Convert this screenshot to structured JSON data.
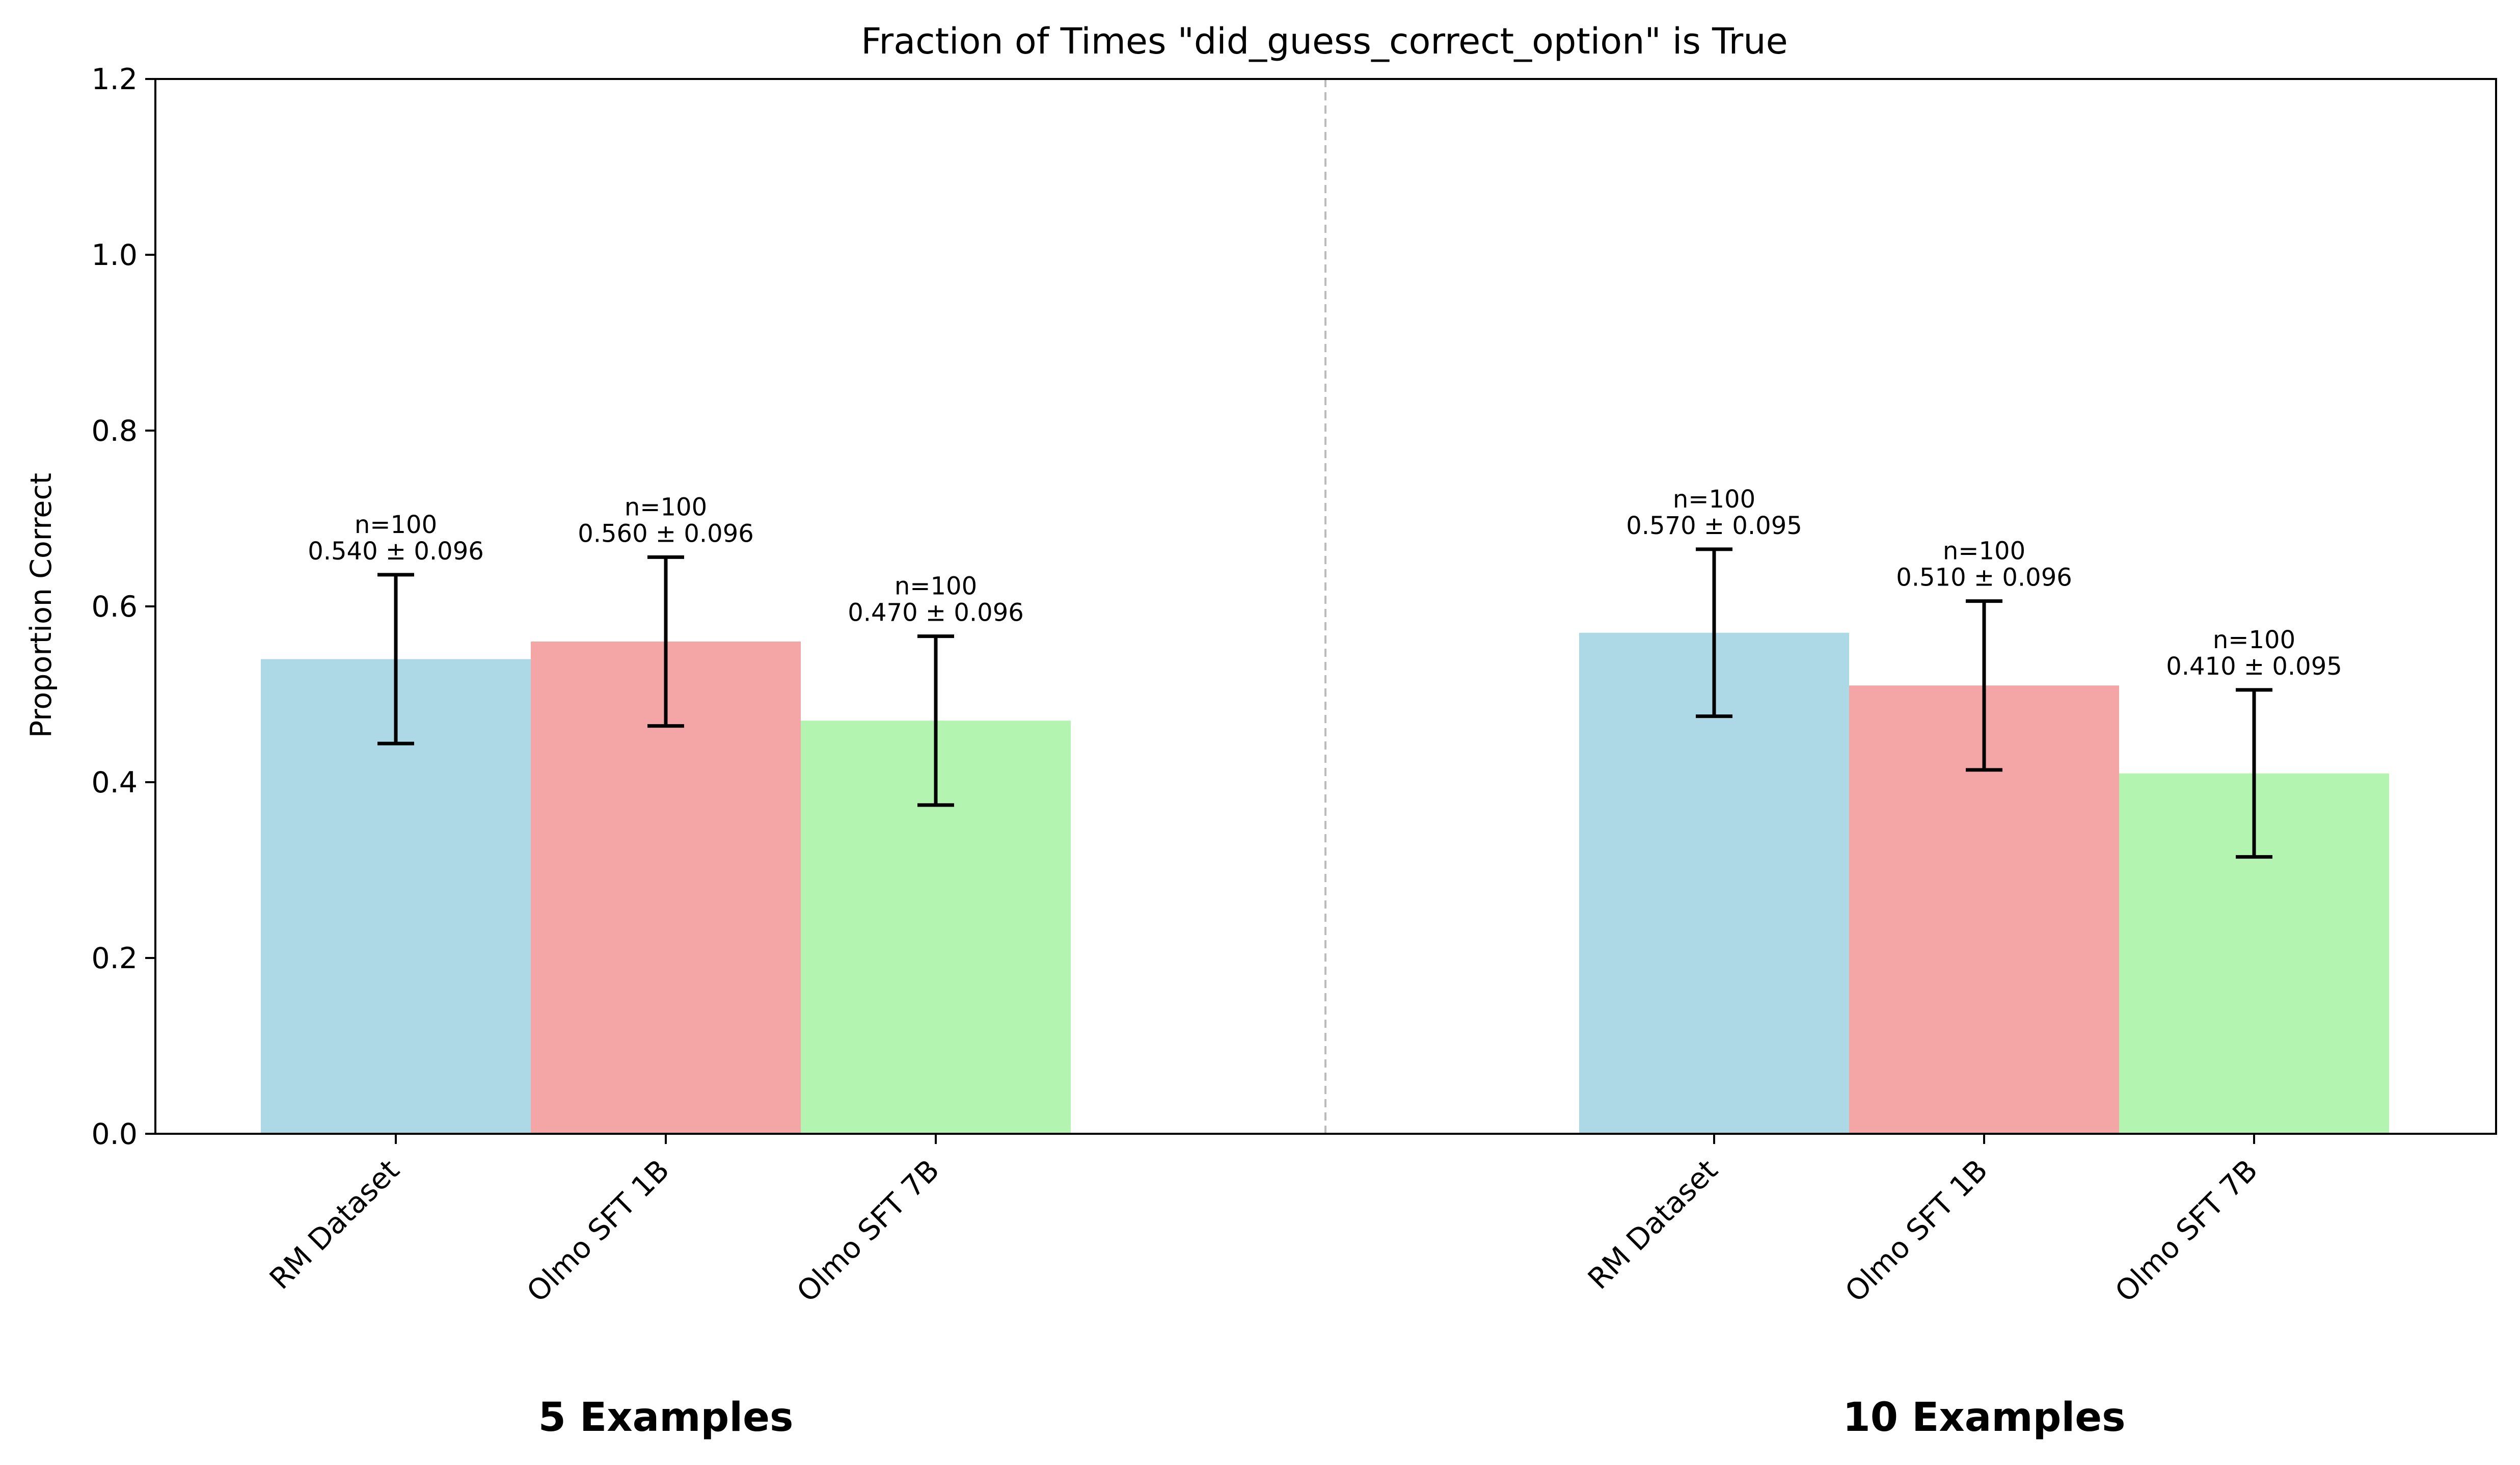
{
  "chart_data": {
    "type": "bar",
    "title": "Fraction of Times \"did_guess_correct_option\" is True",
    "ylabel": "Proportion Correct",
    "xlabel": "",
    "ylim": [
      0,
      1.2
    ],
    "yticks": [
      "0.0",
      "0.2",
      "0.4",
      "0.6",
      "0.8",
      "1.0",
      "1.2"
    ],
    "ytick_values": [
      0,
      0.2,
      0.4,
      0.6,
      0.8,
      1.0,
      1.2
    ],
    "grid": false,
    "legend": "none",
    "groups": [
      {
        "label": "5 Examples",
        "bars": [
          {
            "category": "RM Dataset",
            "value": 0.54,
            "error": 0.096,
            "n_label": "n=100",
            "value_label": "0.540 ± 0.096",
            "color": "#add8e6"
          },
          {
            "category": "Olmo SFT 1B",
            "value": 0.56,
            "error": 0.096,
            "n_label": "n=100",
            "value_label": "0.560 ± 0.096",
            "color": "#f4a6a6"
          },
          {
            "category": "Olmo SFT 7B",
            "value": 0.47,
            "error": 0.096,
            "n_label": "n=100",
            "value_label": "0.470 ± 0.096",
            "color": "#b2f4b0"
          }
        ]
      },
      {
        "label": "10 Examples",
        "bars": [
          {
            "category": "RM Dataset",
            "value": 0.57,
            "error": 0.095,
            "n_label": "n=100",
            "value_label": "0.570 ± 0.095",
            "color": "#add8e6"
          },
          {
            "category": "Olmo SFT 1B",
            "value": 0.51,
            "error": 0.096,
            "n_label": "n=100",
            "value_label": "0.510 ± 0.096",
            "color": "#f4a6a6"
          },
          {
            "category": "Olmo SFT 7B",
            "value": 0.41,
            "error": 0.095,
            "n_label": "n=100",
            "value_label": "0.410 ± 0.095",
            "color": "#b2f4b0"
          }
        ]
      }
    ],
    "separator_color": "#bbbbbb"
  }
}
